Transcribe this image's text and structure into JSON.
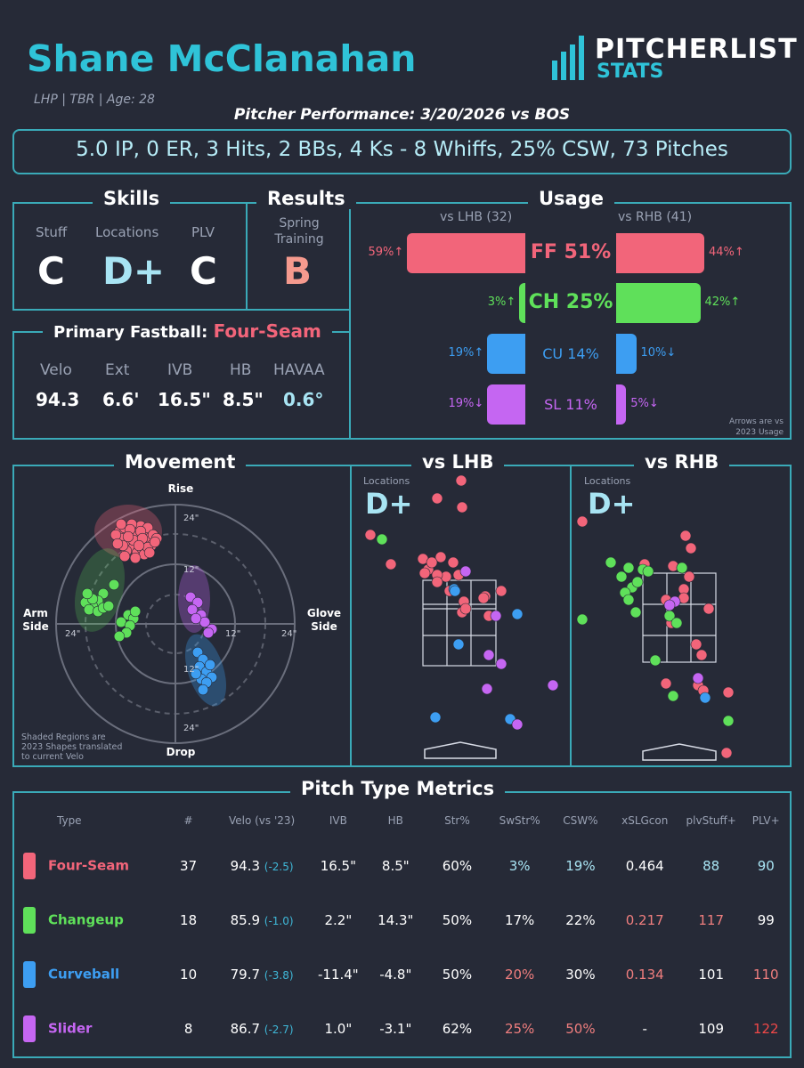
{
  "header": {
    "pitcher_name": "Shane McClanahan",
    "bio": "LHP | TBR | Age: 28",
    "logo_top": "PITCHERLIST",
    "logo_bottom": "STATS",
    "performance_title": "Pitcher Performance: 3/20/2026 vs BOS",
    "stat_line": "5.0 IP, 0 ER, 3 Hits, 2 BBs, 4 Ks - 8 Whiffs, 25% CSW, 73 Pitches"
  },
  "skills": {
    "title": "Skills",
    "grades": [
      {
        "label": "Stuff",
        "grade": "C"
      },
      {
        "label": "Locations",
        "grade": "D+"
      },
      {
        "label": "PLV",
        "grade": "C"
      }
    ]
  },
  "results": {
    "title": "Results",
    "sub": "Spring Training",
    "grade": "B"
  },
  "usage": {
    "title": "Usage",
    "lhb_label": "vs LHB (32)",
    "rhb_label": "vs RHB (41)",
    "note": "Arrows are vs 2023 Usage",
    "pitches": [
      {
        "label": "FF 51%",
        "lhb": "59%↑",
        "rhb": "44%↑",
        "lhb_pct": 59,
        "rhb_pct": 44,
        "color": "#f2657a"
      },
      {
        "label": "CH 25%",
        "lhb": "3%↑",
        "rhb": "42%↑",
        "lhb_pct": 3,
        "rhb_pct": 42,
        "color": "#5fe05a"
      },
      {
        "label": "CU 14%",
        "lhb": "19%↑",
        "rhb": "10%↓",
        "lhb_pct": 19,
        "rhb_pct": 10,
        "color": "#3d9ef2"
      },
      {
        "label": "SL 11%",
        "lhb": "19%↓",
        "rhb": "5%↓",
        "lhb_pct": 19,
        "rhb_pct": 5,
        "color": "#c566f2"
      }
    ]
  },
  "fastball": {
    "title": "Primary Fastball:",
    "type": "Four-Seam",
    "stats": [
      {
        "label": "Velo",
        "value": "94.3"
      },
      {
        "label": "Ext",
        "value": "6.6'"
      },
      {
        "label": "IVB",
        "value": "16.5\""
      },
      {
        "label": "HB",
        "value": "8.5\""
      },
      {
        "label": "HAVAA",
        "value": "0.6°"
      }
    ]
  },
  "movement": {
    "title": "Movement",
    "rise": "Rise",
    "drop": "Drop",
    "arm_side": "Arm Side",
    "glove_side": "Glove Side",
    "ring_24": "24\"",
    "ring_12": "12\"",
    "note": "Shaded Regions are 2023 Shapes translated to current Velo"
  },
  "locations": {
    "lhb_title": "vs LHB",
    "rhb_title": "vs RHB",
    "label": "Locations",
    "lhb_grade": "D+",
    "rhb_grade": "D+"
  },
  "metrics": {
    "title": "Pitch Type Metrics",
    "columns": [
      "Type",
      "#",
      "Velo (vs '23)",
      "IVB",
      "HB",
      "Str%",
      "SwStr%",
      "CSW%",
      "xSLGcon",
      "plvStuff+",
      "PLV+"
    ],
    "rows": [
      {
        "name": "Four-Seam",
        "color": "#f2657a",
        "count": "37",
        "velo": "94.3",
        "delta": "(-2.5)",
        "ivb": "16.5\"",
        "hb": "8.5\"",
        "str": "60%",
        "swstr": "3%",
        "csw": "19%",
        "xslg": "0.464",
        "stuff": "88",
        "plv": "90",
        "c": {
          "swstr": "#a8e4f3",
          "csw": "#a8e4f3",
          "xslg": "#ffffff",
          "stuff": "#a8e4f3",
          "plv": "#a8e4f3"
        }
      },
      {
        "name": "Changeup",
        "color": "#5fe05a",
        "count": "18",
        "velo": "85.9",
        "delta": "(-1.0)",
        "ivb": "2.2\"",
        "hb": "14.3\"",
        "str": "50%",
        "swstr": "17%",
        "csw": "22%",
        "xslg": "0.217",
        "stuff": "117",
        "plv": "99",
        "c": {
          "swstr": "#ffffff",
          "csw": "#ffffff",
          "xslg": "#f07e7e",
          "stuff": "#f07e7e",
          "plv": "#ffffff"
        }
      },
      {
        "name": "Curveball",
        "color": "#3d9ef2",
        "count": "10",
        "velo": "79.7",
        "delta": "(-3.8)",
        "ivb": "-11.4\"",
        "hb": "-4.8\"",
        "str": "50%",
        "swstr": "20%",
        "csw": "30%",
        "xslg": "0.134",
        "stuff": "101",
        "plv": "110",
        "c": {
          "swstr": "#f07e7e",
          "csw": "#ffffff",
          "xslg": "#f07e7e",
          "stuff": "#ffffff",
          "plv": "#f07e7e"
        }
      },
      {
        "name": "Slider",
        "color": "#c566f2",
        "count": "8",
        "velo": "86.7",
        "delta": "(-2.7)",
        "ivb": "1.0\"",
        "hb": "-3.1\"",
        "str": "62%",
        "swstr": "25%",
        "csw": "50%",
        "xslg": "-",
        "stuff": "109",
        "plv": "122",
        "c": {
          "swstr": "#f07e7e",
          "csw": "#f07e7e",
          "xslg": "#ffffff",
          "stuff": "#ffffff",
          "plv": "#f04848"
        }
      }
    ]
  }
}
